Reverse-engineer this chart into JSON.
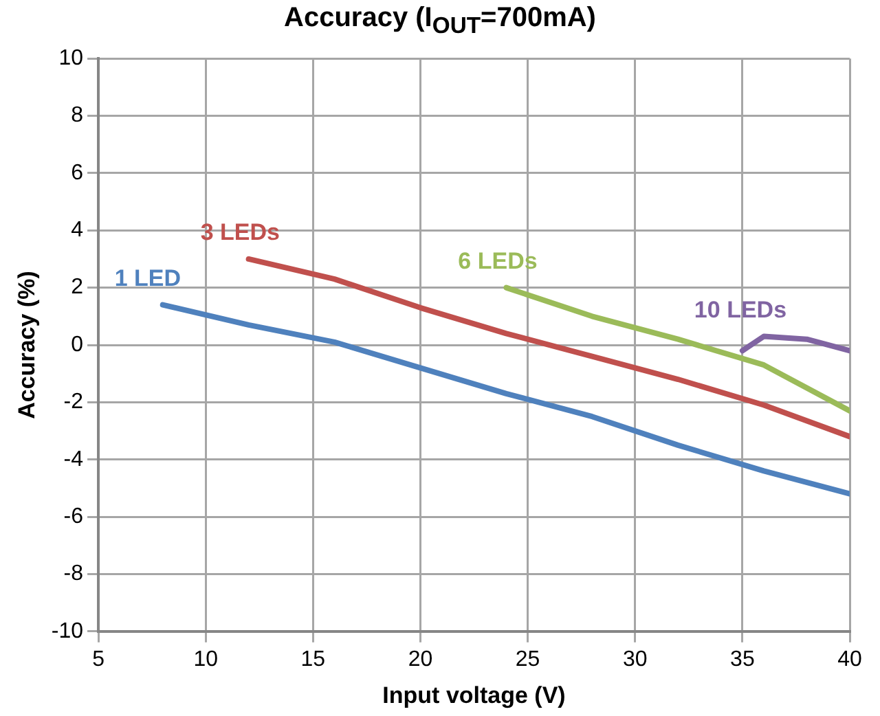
{
  "chart_data": {
    "type": "line",
    "title": "Accuracy (I$_{OUT}$=700mA)",
    "xlabel": "Input voltage (V)",
    "ylabel": "Accuracy (%)",
    "xlim": [
      5,
      40
    ],
    "xticks": [
      5,
      10,
      15,
      20,
      25,
      30,
      35,
      40
    ],
    "ylim": [
      -10,
      10
    ],
    "yticks": [
      -10,
      -8,
      -6,
      -4,
      -2,
      0,
      2,
      4,
      6,
      8,
      10
    ],
    "grid": true,
    "legend": false,
    "marker": "none",
    "line_style": "solid",
    "series": [
      {
        "name": "1 LED",
        "color": "#4f81bd",
        "x": [
          8,
          12,
          16,
          20,
          24,
          28,
          32,
          36,
          40
        ],
        "values": [
          1.4,
          0.7,
          0.1,
          -0.8,
          -1.7,
          -2.5,
          -3.5,
          -4.4,
          -5.2
        ]
      },
      {
        "name": "3 LEDs",
        "color": "#c0504d",
        "x": [
          12,
          16,
          20,
          24,
          28,
          32,
          36,
          40
        ],
        "values": [
          3.0,
          2.3,
          1.3,
          0.4,
          -0.4,
          -1.2,
          -2.1,
          -3.2
        ]
      },
      {
        "name": "6 LEDs",
        "color": "#9bbb59",
        "x": [
          24,
          28,
          32,
          36,
          40
        ],
        "values": [
          2.0,
          1.0,
          0.2,
          -0.7,
          -2.3
        ]
      },
      {
        "name": "10 LEDs",
        "color": "#8064a2",
        "x": [
          35,
          36,
          38,
          40
        ],
        "values": [
          -0.2,
          0.3,
          0.2,
          -0.2
        ]
      }
    ]
  }
}
